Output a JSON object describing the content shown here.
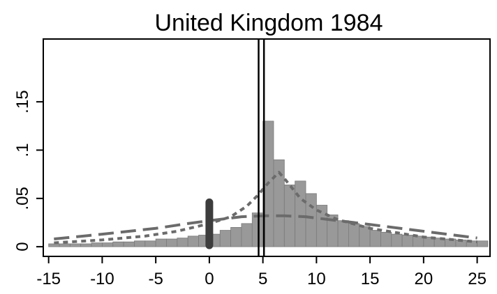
{
  "chart_data": {
    "type": "bar",
    "title": "United Kingdom 1984",
    "xlabel": "",
    "ylabel": "",
    "xlim": [
      -15.5,
      26.2
    ],
    "ylim": [
      -0.01,
      0.215
    ],
    "x_ticks": [
      -15,
      -10,
      -5,
      0,
      5,
      10,
      15,
      20,
      25
    ],
    "x_tick_labels": [
      "-15",
      "-10",
      "-5",
      "0",
      "5",
      "10",
      "15",
      "20",
      "25"
    ],
    "y_ticks": [
      0,
      0.05,
      0.1,
      0.15
    ],
    "y_tick_labels": [
      "0",
      ".05",
      ".1",
      ".15"
    ],
    "grid": false,
    "histogram": {
      "bin_width": 1,
      "color": "#999999",
      "edge_color": "#7a7a7a",
      "bins": [
        {
          "x0": -15,
          "value": 0.003
        },
        {
          "x0": -14,
          "value": 0.003
        },
        {
          "x0": -13,
          "value": 0.003
        },
        {
          "x0": -12,
          "value": 0.003
        },
        {
          "x0": -11,
          "value": 0.004
        },
        {
          "x0": -10,
          "value": 0.004
        },
        {
          "x0": -9,
          "value": 0.005
        },
        {
          "x0": -8,
          "value": 0.005
        },
        {
          "x0": -7,
          "value": 0.006
        },
        {
          "x0": -6,
          "value": 0.006
        },
        {
          "x0": -5,
          "value": 0.008
        },
        {
          "x0": -4,
          "value": 0.008
        },
        {
          "x0": -3,
          "value": 0.009
        },
        {
          "x0": -2,
          "value": 0.011
        },
        {
          "x0": -1,
          "value": 0.012
        },
        {
          "x0": 0,
          "value": 0.013
        },
        {
          "x0": 1,
          "value": 0.017
        },
        {
          "x0": 2,
          "value": 0.02
        },
        {
          "x0": 3,
          "value": 0.024
        },
        {
          "x0": 4,
          "value": 0.035
        },
        {
          "x0": 5,
          "value": 0.13
        },
        {
          "x0": 6,
          "value": 0.09
        },
        {
          "x0": 7,
          "value": 0.064
        },
        {
          "x0": 8,
          "value": 0.068
        },
        {
          "x0": 9,
          "value": 0.055
        },
        {
          "x0": 10,
          "value": 0.043
        },
        {
          "x0": 11,
          "value": 0.033
        },
        {
          "x0": 12,
          "value": 0.027
        },
        {
          "x0": 13,
          "value": 0.024
        },
        {
          "x0": 14,
          "value": 0.021
        },
        {
          "x0": 15,
          "value": 0.017
        },
        {
          "x0": 16,
          "value": 0.015
        },
        {
          "x0": 17,
          "value": 0.013
        },
        {
          "x0": 18,
          "value": 0.012
        },
        {
          "x0": 19,
          "value": 0.011
        },
        {
          "x0": 20,
          "value": 0.01
        },
        {
          "x0": 21,
          "value": 0.009
        },
        {
          "x0": 22,
          "value": 0.008
        },
        {
          "x0": 23,
          "value": 0.007
        },
        {
          "x0": 24,
          "value": 0.006
        },
        {
          "x0": 25,
          "value": 0.006
        }
      ]
    },
    "curves": [
      {
        "style": "long-dash",
        "color": "#6b6b6b",
        "points": [
          [
            -14.5,
            0.008
          ],
          [
            -10,
            0.013
          ],
          [
            -5,
            0.019
          ],
          [
            -2,
            0.024
          ],
          [
            0,
            0.027
          ],
          [
            3,
            0.031
          ],
          [
            5,
            0.032
          ],
          [
            7,
            0.032
          ],
          [
            9,
            0.031
          ],
          [
            12,
            0.027
          ],
          [
            15,
            0.023
          ],
          [
            20,
            0.016
          ],
          [
            25,
            0.009
          ]
        ]
      },
      {
        "style": "short-dash",
        "color": "#6b6b6b",
        "points": [
          [
            -14.5,
            0.004
          ],
          [
            -10,
            0.007
          ],
          [
            -6,
            0.011
          ],
          [
            -3,
            0.016
          ],
          [
            0,
            0.024
          ],
          [
            2,
            0.031
          ],
          [
            3.5,
            0.042
          ],
          [
            4.5,
            0.053
          ],
          [
            5.5,
            0.066
          ],
          [
            6.5,
            0.077
          ],
          [
            7.2,
            0.068
          ],
          [
            8.5,
            0.05
          ],
          [
            10,
            0.038
          ],
          [
            12,
            0.028
          ],
          [
            15,
            0.019
          ],
          [
            20,
            0.01
          ],
          [
            25,
            0.005
          ]
        ]
      }
    ],
    "vertical_lines": [
      {
        "x": 4.6,
        "color": "#000000"
      },
      {
        "x": 5.1,
        "color": "#000000"
      }
    ],
    "marker_segment": {
      "x": 0,
      "y_from": 0.0,
      "y_to": 0.046,
      "color": "#3d3d3d"
    }
  }
}
